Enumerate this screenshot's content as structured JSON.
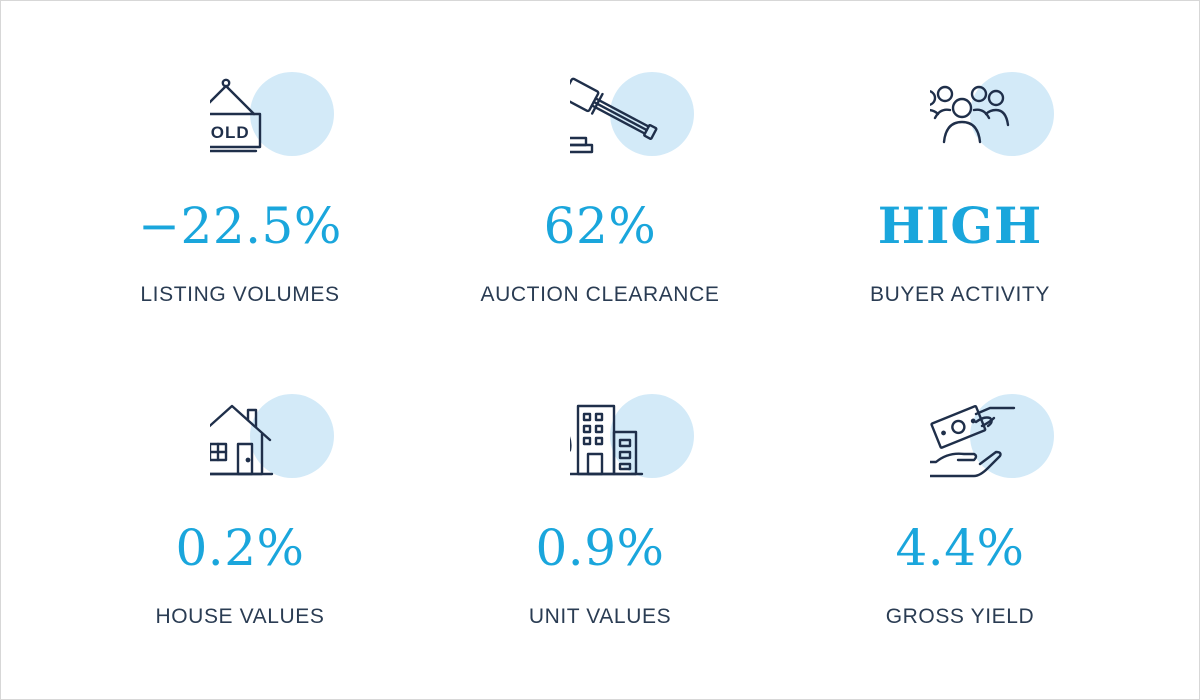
{
  "colors": {
    "accent": "#1aa6dc",
    "circle": "#d3eaf8",
    "icon_stroke": "#1f2f4a",
    "label": "#2a3c53"
  },
  "stats": [
    {
      "icon": "sold-sign-icon",
      "value": "−22.5%",
      "label": "LISTING VOLUMES"
    },
    {
      "icon": "auction-gavel-icon",
      "value": "62%",
      "label": "AUCTION CLEARANCE"
    },
    {
      "icon": "people-group-icon",
      "value": "HIGH",
      "label": "BUYER ACTIVITY"
    },
    {
      "icon": "house-icon",
      "value": "0.2%",
      "label": "HOUSE VALUES"
    },
    {
      "icon": "apartment-building-icon",
      "value": "0.9%",
      "label": "UNIT VALUES"
    },
    {
      "icon": "money-hand-icon",
      "value": "4.4%",
      "label": "GROSS YIELD"
    }
  ],
  "sold_sign_text": "SOLD"
}
